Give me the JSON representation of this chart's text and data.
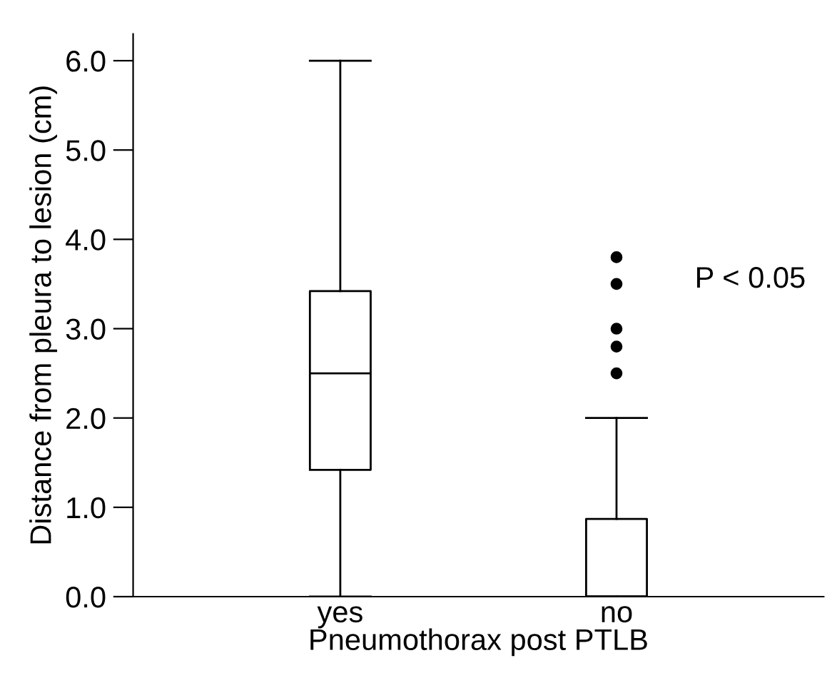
{
  "chart_data": {
    "type": "box",
    "categories": [
      "yes",
      "no"
    ],
    "boxes": [
      {
        "low": 0,
        "q1": 1.42,
        "median": 2.5,
        "q3": 3.42,
        "high": 6.0
      },
      {
        "low": 0,
        "q1": 0,
        "median": 0,
        "q3": 0.87,
        "high": 2.0,
        "outliers": [
          2.5,
          2.8,
          3.0,
          3.5,
          3.8
        ]
      }
    ],
    "xlabel": "Pneumothorax post PTLB",
    "ylabel": "Distance from pleura to lesion (cm)",
    "ylim": [
      0,
      6.3
    ],
    "yticks": [
      {
        "value": 0,
        "label": "0.0"
      },
      {
        "value": 1,
        "label": "1.0"
      },
      {
        "value": 2,
        "label": "2.0"
      },
      {
        "value": 3,
        "label": "3.0"
      },
      {
        "value": 4,
        "label": "4.0"
      },
      {
        "value": 5,
        "label": "5.0"
      },
      {
        "value": 6,
        "label": "6.0"
      }
    ],
    "annotations": [
      "P < 0.05"
    ],
    "grid": false,
    "color": "#000000"
  }
}
